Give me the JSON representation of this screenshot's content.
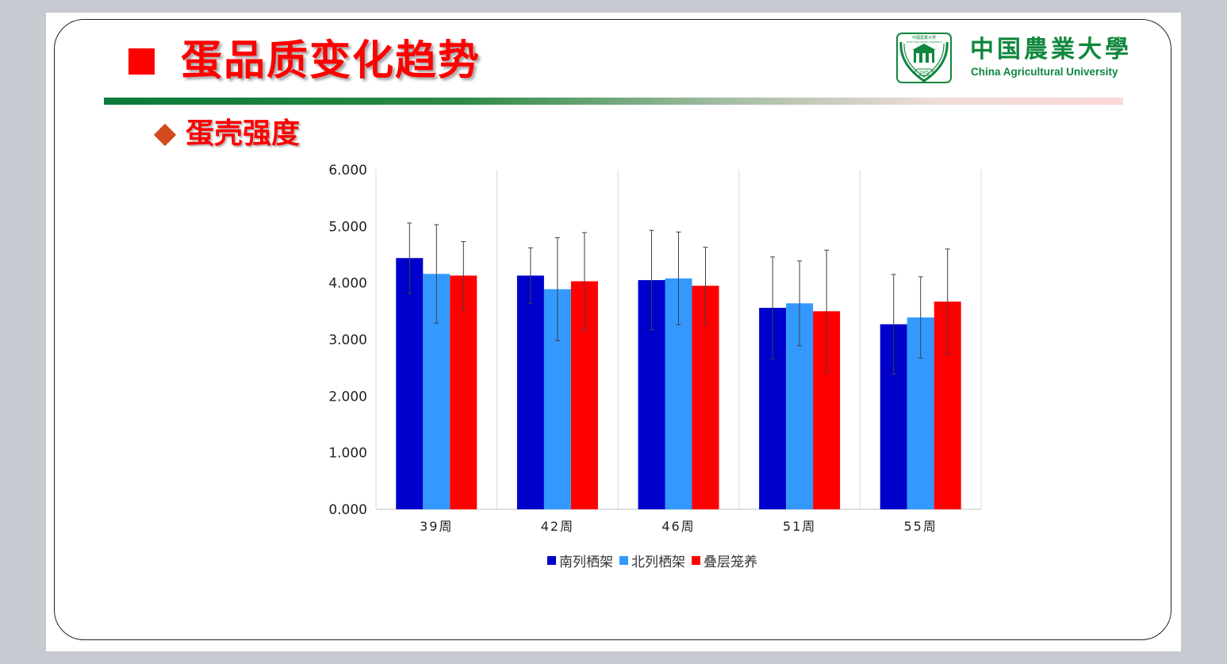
{
  "slide": {
    "title": "蛋品质变化趋势",
    "subtitle": "蛋壳强度",
    "university_cn": "中国農業大學",
    "university_en": "China Agricultural University",
    "logo": {
      "icon": "university-seal-icon",
      "text_top": "中國農業大學",
      "text_ring": "CHINA AGRICULTURAL UNIVERSITY",
      "year": "1905"
    }
  },
  "colors": {
    "title": "#ff0000",
    "brand_green": "#10873d",
    "bullet": "#d24a1e"
  },
  "chart_data": {
    "type": "bar",
    "title": "",
    "xlabel": "",
    "ylabel": "",
    "ylim": [
      0,
      6
    ],
    "yticks": [
      "0.000",
      "1.000",
      "2.000",
      "3.000",
      "4.000",
      "5.000",
      "6.000"
    ],
    "categories": [
      "39周",
      "42周",
      "46周",
      "51周",
      "55周"
    ],
    "legend_position": "bottom",
    "error_bars": true,
    "series": [
      {
        "name": "南列栖架",
        "color": "#0000cc",
        "values": [
          4.44,
          4.13,
          4.05,
          3.56,
          3.27
        ],
        "errors": [
          0.62,
          0.49,
          0.88,
          0.9,
          0.88
        ]
      },
      {
        "name": "北列栖架",
        "color": "#3399ff",
        "values": [
          4.16,
          3.89,
          4.08,
          3.64,
          3.39
        ],
        "errors": [
          0.87,
          0.91,
          0.82,
          0.75,
          0.72
        ]
      },
      {
        "name": "叠层笼养",
        "color": "#ff0000",
        "values": [
          4.13,
          4.03,
          3.95,
          3.5,
          3.67
        ],
        "errors": [
          0.6,
          0.86,
          0.68,
          1.08,
          0.93
        ]
      }
    ]
  }
}
